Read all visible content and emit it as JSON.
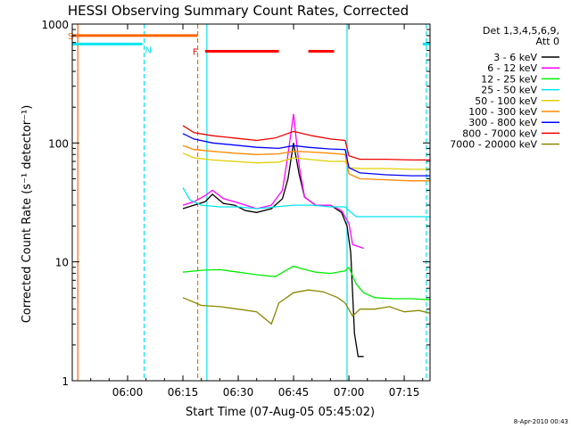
{
  "chart_data": {
    "type": "line",
    "title": "HESSI Observing Summary Count Rates, Corrected",
    "xlabel": "Start Time (07-Aug-05 05:45:02)",
    "ylabel": "Corrected Count Rate (s⁻¹ detector⁻¹)",
    "y_scale": "log",
    "ylim": [
      1,
      1000
    ],
    "xlim_minutes_after_start": [
      0,
      97
    ],
    "x_ticks": [
      {
        "minute": 15,
        "label": "06:00"
      },
      {
        "minute": 30,
        "label": "06:15"
      },
      {
        "minute": 45,
        "label": "06:30"
      },
      {
        "minute": 60,
        "label": "06:45"
      },
      {
        "minute": 75,
        "label": "07:00"
      },
      {
        "minute": 90,
        "label": "07:15"
      }
    ],
    "y_ticks": [
      {
        "value": 1,
        "label": "1"
      },
      {
        "value": 10,
        "label": "10"
      },
      {
        "value": 100,
        "label": "100"
      },
      {
        "value": 1000,
        "label": "1000"
      }
    ],
    "legend": {
      "position": "right",
      "header_line1": "Det 1,3,4,5,6,9,",
      "header_line2": "Att 0"
    },
    "series": [
      {
        "name": "3 - 6 keV",
        "color": "#000000",
        "x": [
          30,
          33,
          36,
          38,
          41,
          44,
          47,
          50,
          54,
          57,
          58.5,
          60,
          61.5,
          63,
          66,
          70,
          73,
          74.5,
          75.5,
          76.5,
          77.5,
          79
        ],
        "y": [
          28,
          30,
          32,
          37,
          31,
          30,
          27,
          26,
          28,
          34,
          50,
          100,
          55,
          35,
          30,
          30,
          26,
          20,
          12,
          2.5,
          1.6,
          1.6
        ]
      },
      {
        "name": "6 - 12 keV",
        "color": "#ff00ff",
        "x": [
          30,
          33,
          36,
          38,
          41,
          44,
          47,
          50,
          54,
          57,
          58.5,
          60,
          61.5,
          63,
          66,
          70,
          73,
          75,
          76,
          79
        ],
        "y": [
          30,
          32,
          36,
          40,
          34,
          32,
          30,
          28,
          30,
          40,
          80,
          175,
          65,
          35,
          30,
          30,
          27,
          21,
          14,
          13
        ]
      },
      {
        "name": "12 - 25 keV",
        "color": "#00ee00",
        "x": [
          30,
          35,
          40,
          45,
          50,
          55,
          58,
          60,
          62,
          66,
          70,
          74,
          75,
          77,
          79,
          82,
          87,
          92,
          97
        ],
        "y": [
          8.2,
          8.5,
          8.6,
          8.2,
          7.8,
          7.5,
          8.5,
          9.2,
          8.8,
          8.2,
          8.0,
          8.4,
          9.0,
          6.5,
          5.5,
          5.0,
          4.9,
          4.9,
          4.8
        ]
      },
      {
        "name": "25 - 50 keV",
        "color": "#00e5ee",
        "x": [
          30,
          32,
          35,
          40,
          45,
          50,
          55,
          60,
          65,
          70,
          74,
          75,
          77,
          80,
          85,
          90,
          97
        ],
        "y": [
          42,
          33,
          30,
          29,
          29,
          28,
          29,
          30,
          30,
          29,
          29,
          27,
          24,
          24,
          24,
          24,
          24
        ]
      },
      {
        "name": "50 - 100 keV",
        "color": "#e0d000",
        "x": [
          30,
          33,
          38,
          44,
          50,
          56,
          60,
          64,
          70,
          74,
          75,
          78,
          85,
          92,
          97
        ],
        "y": [
          82,
          75,
          72,
          70,
          68,
          69,
          75,
          73,
          70,
          70,
          62,
          61,
          61,
          60,
          60
        ]
      },
      {
        "name": "100 - 300 keV",
        "color": "#ff8800",
        "x": [
          30,
          33,
          38,
          44,
          50,
          56,
          60,
          64,
          70,
          74,
          75,
          78,
          85,
          92,
          97
        ],
        "y": [
          95,
          88,
          85,
          82,
          80,
          81,
          85,
          84,
          82,
          80,
          55,
          50,
          49,
          48,
          48
        ]
      },
      {
        "name": "300 - 800 keV",
        "color": "#0000ff",
        "x": [
          30,
          33,
          38,
          44,
          50,
          56,
          60,
          64,
          70,
          74,
          75,
          78,
          85,
          92,
          97
        ],
        "y": [
          120,
          108,
          100,
          96,
          92,
          90,
          95,
          92,
          89,
          88,
          62,
          56,
          54,
          53,
          53
        ]
      },
      {
        "name": "800 - 7000 keV",
        "color": "#ee0000",
        "x": [
          30,
          33,
          38,
          44,
          50,
          55,
          60,
          65,
          70,
          74,
          75,
          78,
          85,
          92,
          97
        ],
        "y": [
          140,
          122,
          115,
          110,
          105,
          110,
          125,
          115,
          108,
          105,
          78,
          73,
          73,
          72,
          72
        ]
      },
      {
        "name": "7000 - 20000 keV",
        "color": "#888800",
        "x": [
          30,
          35,
          40,
          45,
          50,
          54,
          56,
          60,
          64,
          68,
          72,
          74,
          76,
          78,
          82,
          86,
          90,
          94,
          97
        ],
        "y": [
          5.0,
          4.3,
          4.2,
          4.0,
          3.8,
          3.0,
          4.5,
          5.5,
          5.8,
          5.6,
          5.0,
          4.5,
          3.5,
          4.0,
          4.0,
          4.2,
          3.8,
          3.9,
          3.7
        ]
      }
    ],
    "flags": {
      "saa": {
        "label": "S",
        "color": "#ff6600",
        "y_value": 800,
        "x": [
          0,
          34
        ]
      },
      "night": {
        "label": "N",
        "color": "#00e5ee",
        "y_value": 680,
        "segments": [
          [
            0,
            19
          ],
          [
            95,
            97
          ]
        ]
      },
      "flare": {
        "label": "F",
        "color": "#ff0000",
        "y_value": 590,
        "segments": [
          [
            36,
            56
          ],
          [
            64,
            71
          ]
        ]
      }
    },
    "vertical_markers": [
      {
        "minute": 1.5,
        "color": "#ff6600",
        "style": "solid"
      },
      {
        "minute": 19.5,
        "color": "#00e5ee",
        "style": "dashed"
      },
      {
        "minute": 34,
        "color": "#ff6600",
        "style": "dashed"
      },
      {
        "minute": 36.5,
        "color": "#00e5ee",
        "style": "solid"
      },
      {
        "minute": 74.5,
        "color": "#00e5ee",
        "style": "solid"
      },
      {
        "minute": 96,
        "color": "#00e5ee",
        "style": "dashed"
      }
    ],
    "footer_date": "8-Apr-2010 00:43"
  }
}
